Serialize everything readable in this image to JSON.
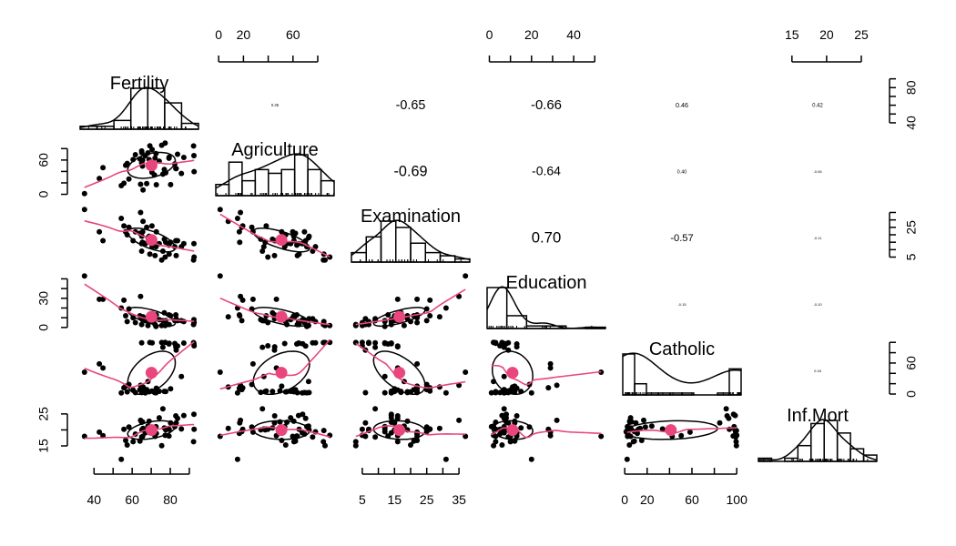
{
  "chart_data": {
    "type": "scatter",
    "subtype": "pairs-panels (scatterplot matrix with histograms, loess fits, correlation ellipses)",
    "title": "",
    "variables": [
      "Fertility",
      "Agriculture",
      "Examination",
      "Education",
      "Catholic",
      "Inf.Mort"
    ],
    "ranges": {
      "Fertility": [
        35,
        92.5
      ],
      "Agriculture": [
        1.2,
        89.7
      ],
      "Examination": [
        3,
        37
      ],
      "Education": [
        1,
        53
      ],
      "Catholic": [
        2.15,
        100
      ],
      "Inf.Mort": [
        10.8,
        26.6
      ]
    },
    "axes": {
      "bottom": [
        {
          "variable": "Fertility",
          "ticks": [
            40,
            50,
            60,
            70,
            80,
            90
          ],
          "labels": [
            "40",
            "60",
            "80"
          ],
          "label_values": [
            40,
            60,
            80
          ]
        },
        {
          "variable": "Examination",
          "ticks": [
            5,
            10,
            15,
            20,
            25,
            30,
            35
          ],
          "labels": [
            "5",
            "15",
            "25",
            "35"
          ],
          "label_values": [
            5,
            15,
            25,
            35
          ]
        },
        {
          "variable": "Catholic",
          "ticks": [
            0,
            20,
            40,
            60,
            80,
            100
          ],
          "labels": [
            "0",
            "20",
            "60",
            "100"
          ],
          "label_values": [
            0,
            20,
            60,
            100
          ]
        }
      ],
      "top": [
        {
          "variable": "Agriculture",
          "ticks": [
            0,
            20,
            40,
            60,
            80
          ],
          "labels": [
            "0",
            "20",
            "60"
          ],
          "label_values": [
            0,
            20,
            60
          ]
        },
        {
          "variable": "Education",
          "ticks": [
            0,
            10,
            20,
            30,
            40,
            50
          ],
          "labels": [
            "0",
            "20",
            "40"
          ],
          "label_values": [
            0,
            20,
            40
          ]
        },
        {
          "variable": "Inf.Mort",
          "ticks": [
            15,
            20,
            25
          ],
          "labels": [
            "15",
            "20",
            "25"
          ],
          "label_values": [
            15,
            20,
            25
          ]
        }
      ],
      "left": [
        {
          "variable": "Agriculture",
          "ticks": [
            0,
            20,
            40,
            60,
            80
          ],
          "labels": [
            "0",
            "60"
          ],
          "label_values": [
            0,
            60
          ]
        },
        {
          "variable": "Education",
          "ticks": [
            0,
            10,
            20,
            30,
            40,
            50
          ],
          "labels": [
            "0",
            "30"
          ],
          "label_values": [
            0,
            30
          ]
        },
        {
          "variable": "Inf.Mort",
          "ticks": [
            15,
            20,
            25
          ],
          "labels": [
            "15",
            "25"
          ],
          "label_values": [
            15,
            25
          ]
        }
      ],
      "right": [
        {
          "variable": "Fertility",
          "ticks": [
            40,
            50,
            60,
            70,
            80,
            90
          ],
          "labels": [
            "40",
            "80"
          ],
          "label_values": [
            40,
            80
          ]
        },
        {
          "variable": "Examination",
          "ticks": [
            5,
            10,
            15,
            20,
            25,
            30,
            35
          ],
          "labels": [
            "5",
            "25"
          ],
          "label_values": [
            5,
            25
          ]
        },
        {
          "variable": "Catholic",
          "ticks": [
            0,
            20,
            40,
            60,
            80,
            100
          ],
          "labels": [
            "0",
            "60"
          ],
          "label_values": [
            0,
            60
          ]
        }
      ]
    },
    "correlations": [
      {
        "row": "Fertility",
        "col": "Agriculture",
        "r": "0.35"
      },
      {
        "row": "Fertility",
        "col": "Examination",
        "r": "-0.65"
      },
      {
        "row": "Fertility",
        "col": "Education",
        "r": "-0.66"
      },
      {
        "row": "Fertility",
        "col": "Catholic",
        "r": "0.46"
      },
      {
        "row": "Fertility",
        "col": "Inf.Mort",
        "r": "0.42"
      },
      {
        "row": "Agriculture",
        "col": "Examination",
        "r": "-0.69"
      },
      {
        "row": "Agriculture",
        "col": "Education",
        "r": "-0.64"
      },
      {
        "row": "Agriculture",
        "col": "Catholic",
        "r": "0.40"
      },
      {
        "row": "Agriculture",
        "col": "Inf.Mort",
        "r": "-0.06"
      },
      {
        "row": "Examination",
        "col": "Education",
        "r": "0.70"
      },
      {
        "row": "Examination",
        "col": "Catholic",
        "r": "-0.57"
      },
      {
        "row": "Examination",
        "col": "Inf.Mort",
        "r": "-0.11"
      },
      {
        "row": "Education",
        "col": "Catholic",
        "r": "-0.15"
      },
      {
        "row": "Education",
        "col": "Inf.Mort",
        "r": "-0.10"
      },
      {
        "row": "Catholic",
        "col": "Inf.Mort",
        "r": "0.18"
      }
    ],
    "histograms": {
      "Fertility": {
        "breaks": [
          30,
          40,
          50,
          60,
          70,
          80,
          90,
          100
        ],
        "counts": [
          1,
          1,
          3,
          14,
          14,
          9,
          2
        ]
      },
      "Agriculture": {
        "breaks": [
          0,
          10,
          20,
          30,
          40,
          50,
          60,
          70,
          80,
          90
        ],
        "counts": [
          3,
          9,
          4,
          7,
          6,
          7,
          11,
          7,
          4
        ]
      },
      "Examination": {
        "breaks": [
          0,
          5,
          10,
          15,
          20,
          25,
          30,
          35,
          40
        ],
        "counts": [
          3,
          8,
          13,
          11,
          6,
          3,
          2,
          1
        ]
      },
      "Education": {
        "breaks": [
          0,
          10,
          20,
          30,
          40,
          50,
          60
        ],
        "counts": [
          32,
          10,
          2,
          2,
          0,
          1
        ]
      },
      "Catholic": {
        "breaks": [
          0,
          10,
          20,
          30,
          40,
          50,
          60,
          70,
          80,
          90,
          100
        ],
        "counts": [
          22,
          6,
          1,
          1,
          1,
          1,
          0,
          0,
          1,
          14
        ]
      },
      "Inf.Mort": {
        "breaks": [
          10,
          12,
          14,
          16,
          18,
          20,
          22,
          24,
          26,
          28
        ],
        "counts": [
          1,
          0,
          1,
          5,
          12,
          13,
          9,
          4,
          2
        ]
      }
    },
    "data": {
      "Fertility": [
        80.2,
        83.1,
        92.5,
        85.8,
        76.9,
        76.1,
        83.8,
        92.4,
        82.4,
        82.9,
        87.1,
        64.1,
        66.9,
        68.9,
        61.7,
        68.3,
        71.7,
        55.7,
        54.3,
        65.1,
        65.5,
        65.0,
        56.6,
        57.4,
        72.5,
        74.2,
        72.0,
        60.5,
        58.3,
        65.4,
        75.5,
        69.3,
        77.3,
        70.5,
        79.4,
        65.0,
        92.2,
        79.3,
        70.4,
        65.7,
        72.7,
        64.4,
        77.6,
        67.6,
        35.0,
        44.7,
        42.8
      ],
      "Agriculture": [
        17.0,
        45.1,
        39.7,
        36.5,
        43.5,
        35.3,
        70.2,
        67.8,
        53.3,
        45.2,
        64.5,
        62.0,
        67.5,
        60.7,
        69.3,
        72.6,
        34.0,
        19.4,
        15.2,
        73.0,
        59.8,
        55.1,
        50.9,
        54.1,
        71.2,
        58.1,
        63.5,
        60.8,
        26.8,
        49.5,
        85.9,
        84.9,
        89.7,
        78.2,
        64.9,
        75.9,
        84.6,
        63.1,
        38.4,
        7.7,
        16.7,
        17.6,
        37.6,
        18.7,
        1.2,
        46.6,
        27.7
      ],
      "Examination": [
        15,
        6,
        5,
        12,
        17,
        9,
        16,
        14,
        12,
        16,
        14,
        21,
        14,
        19,
        22,
        18,
        17,
        26,
        31,
        19,
        22,
        14,
        22,
        20,
        12,
        14,
        6,
        16,
        25,
        15,
        3,
        7,
        5,
        12,
        7,
        9,
        3,
        13,
        26,
        29,
        22,
        35,
        15,
        25,
        37,
        16,
        22
      ],
      "Education": [
        12,
        9,
        5,
        7,
        15,
        7,
        7,
        8,
        7,
        13,
        6,
        12,
        7,
        12,
        5,
        2,
        8,
        28,
        20,
        9,
        10,
        3,
        12,
        6,
        1,
        8,
        3,
        10,
        19,
        8,
        2,
        6,
        2,
        6,
        3,
        9,
        3,
        13,
        12,
        11,
        13,
        32,
        7,
        7,
        53,
        29,
        29
      ],
      "Catholic": [
        9.96,
        84.84,
        93.4,
        33.77,
        5.16,
        90.57,
        92.85,
        97.16,
        97.67,
        91.38,
        98.61,
        8.52,
        2.27,
        4.43,
        2.82,
        24.2,
        3.3,
        12.11,
        2.15,
        2.84,
        5.23,
        4.52,
        15.14,
        4.2,
        2.4,
        5.23,
        2.56,
        7.72,
        18.46,
        6.1,
        99.71,
        99.68,
        100.0,
        98.96,
        98.22,
        99.06,
        99.46,
        96.83,
        5.62,
        13.79,
        11.22,
        16.92,
        4.97,
        8.65,
        42.34,
        50.43,
        58.33
      ],
      "Inf.Mort": [
        22.2,
        22.2,
        20.2,
        20.3,
        20.6,
        26.6,
        23.6,
        24.9,
        21.0,
        24.4,
        24.5,
        16.5,
        19.1,
        22.7,
        18.7,
        21.2,
        20.0,
        20.2,
        10.8,
        20.0,
        18.0,
        22.4,
        16.7,
        15.3,
        21.0,
        23.8,
        18.0,
        16.3,
        20.9,
        22.5,
        15.1,
        19.8,
        18.3,
        19.4,
        20.2,
        17.8,
        16.3,
        18.1,
        20.3,
        20.5,
        18.9,
        23.0,
        20.0,
        19.5,
        18.0,
        18.2,
        19.3
      ]
    },
    "mark_colors": {
      "points": "#000000",
      "loess": "#e8467c",
      "centroid": "#e8467c",
      "ellipse": "#000000"
    },
    "grid": false,
    "legend": "none"
  }
}
